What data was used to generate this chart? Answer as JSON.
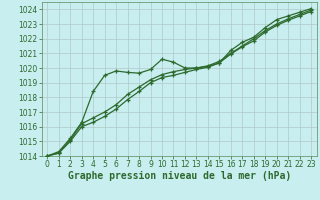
{
  "title": "Graphe pression niveau de la mer (hPa)",
  "bg_color": "#c8eef0",
  "grid_color": "#b0c8c8",
  "ylim": [
    1014,
    1024.5
  ],
  "xlim": [
    -0.5,
    23.5
  ],
  "yticks": [
    1014,
    1015,
    1016,
    1017,
    1018,
    1019,
    1020,
    1021,
    1022,
    1023,
    1024
  ],
  "xticks": [
    0,
    1,
    2,
    3,
    4,
    5,
    6,
    7,
    8,
    9,
    10,
    11,
    12,
    13,
    14,
    15,
    16,
    17,
    18,
    19,
    20,
    21,
    22,
    23
  ],
  "line1_x": [
    0,
    1,
    2,
    3,
    4,
    5,
    6,
    7,
    8,
    9,
    10,
    11,
    12,
    13,
    14,
    15,
    16,
    17,
    18,
    19,
    20,
    21,
    22,
    23
  ],
  "line1_y": [
    1014.0,
    1014.3,
    1015.2,
    1016.3,
    1018.4,
    1019.5,
    1019.8,
    1019.7,
    1019.65,
    1019.9,
    1020.6,
    1020.4,
    1020.0,
    1020.0,
    1020.1,
    1020.35,
    1021.2,
    1021.75,
    1022.1,
    1022.75,
    1023.3,
    1023.55,
    1023.8,
    1024.05
  ],
  "line2_x": [
    0,
    1,
    2,
    3,
    4,
    5,
    6,
    7,
    8,
    9,
    10,
    11,
    12,
    13,
    14,
    15,
    16,
    17,
    18,
    19,
    20,
    21,
    22,
    23
  ],
  "line2_y": [
    1014.0,
    1014.2,
    1015.1,
    1016.2,
    1016.6,
    1017.0,
    1017.5,
    1018.2,
    1018.7,
    1019.2,
    1019.55,
    1019.75,
    1019.9,
    1020.0,
    1020.15,
    1020.45,
    1021.0,
    1021.5,
    1022.0,
    1022.55,
    1023.0,
    1023.35,
    1023.65,
    1023.95
  ],
  "line3_x": [
    0,
    1,
    2,
    3,
    4,
    5,
    6,
    7,
    8,
    9,
    10,
    11,
    12,
    13,
    14,
    15,
    16,
    17,
    18,
    19,
    20,
    21,
    22,
    23
  ],
  "line3_y": [
    1014.0,
    1014.2,
    1015.0,
    1016.0,
    1016.3,
    1016.7,
    1017.2,
    1017.85,
    1018.4,
    1019.0,
    1019.35,
    1019.5,
    1019.7,
    1019.9,
    1020.05,
    1020.35,
    1020.95,
    1021.45,
    1021.85,
    1022.45,
    1022.9,
    1023.25,
    1023.55,
    1023.85
  ],
  "line_color": "#2d6a2d",
  "marker": "+",
  "marker_size": 3.5,
  "marker_lw": 0.9,
  "line_width": 0.9,
  "tick_fontsize": 5.5,
  "label_fontsize": 7.0,
  "spine_color": "#5a8a5a"
}
